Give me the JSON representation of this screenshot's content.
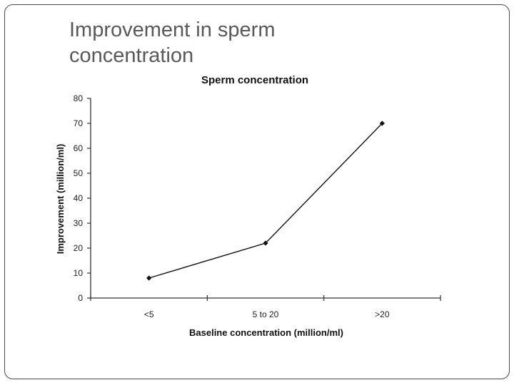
{
  "slide": {
    "title": "Improvement in sperm concentration"
  },
  "chart_data": {
    "type": "line",
    "title": "Sperm concentration",
    "xlabel": "Baseline concentration (million/ml)",
    "ylabel": "Improvement (million/ml)",
    "categories": [
      "<5",
      "5 to 20",
      ">20"
    ],
    "series": [
      {
        "name": "Improvement",
        "values": [
          8,
          22,
          70
        ]
      }
    ],
    "ylim": [
      0,
      80
    ],
    "yticks": [
      0,
      10,
      20,
      30,
      40,
      50,
      60,
      70,
      80
    ],
    "grid": false,
    "legend": "none",
    "line_color": "#111111"
  }
}
